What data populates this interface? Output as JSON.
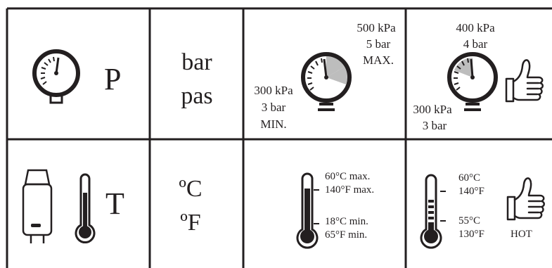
{
  "row_pressure": {
    "symbol": "P",
    "units": [
      "bar",
      "pas"
    ],
    "range": {
      "max_kpa": "500 kPa",
      "max_bar": "5 bar",
      "max_label": "MAX.",
      "min_kpa": "300 kPa",
      "min_bar": "3 bar",
      "min_label": "MIN."
    },
    "ideal": {
      "top_kpa": "400 kPa",
      "top_bar": "4 bar",
      "bottom_kpa": "300 kPa",
      "bottom_bar": "3 bar"
    }
  },
  "row_temperature": {
    "symbol": "T",
    "units": [
      "ºC",
      "ºF"
    ],
    "range": {
      "max_c": "60°C max.",
      "max_f": "140°F max.",
      "min_c": "18°C min.",
      "min_f": "65°F min."
    },
    "hot": {
      "top_c": "60°C",
      "top_f": "140°F",
      "bottom_c": "55°C",
      "bottom_f": "130°F",
      "label": "HOT"
    }
  },
  "icons": {
    "gauge": "pressure-gauge-icon",
    "thermometer": "thermometer-icon",
    "boiler": "water-heater-icon",
    "thumb": "thumbs-up-icon"
  },
  "colors": {
    "ink": "#231f20",
    "highlight": "#bdbdbd"
  }
}
